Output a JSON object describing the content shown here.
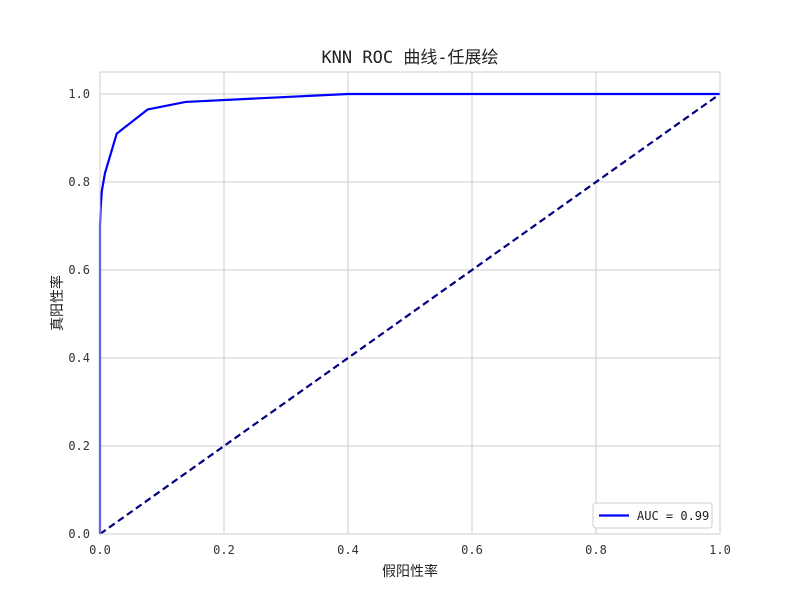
{
  "chart_data": {
    "type": "line",
    "title": "KNN ROC 曲线-任展绘",
    "xlabel": "假阳性率",
    "ylabel": "真阳性率",
    "xlim": [
      0.0,
      1.0
    ],
    "ylim": [
      0.0,
      1.05
    ],
    "xticks": [
      0.0,
      0.2,
      0.4,
      0.6,
      0.8,
      1.0
    ],
    "yticks": [
      0.0,
      0.2,
      0.4,
      0.6,
      0.8,
      1.0
    ],
    "xtick_labels": [
      "0.0",
      "0.2",
      "0.4",
      "0.6",
      "0.8",
      "1.0"
    ],
    "ytick_labels": [
      "0.0",
      "0.2",
      "0.4",
      "0.6",
      "0.8",
      "1.0"
    ],
    "grid": true,
    "legend_position": "lower-right",
    "series": [
      {
        "name": "AUC = 0.99",
        "color": "#0000ff",
        "style": "solid",
        "x": [
          0.0,
          0.0,
          0.001,
          0.003,
          0.008,
          0.027,
          0.077,
          0.138,
          0.4,
          1.0
        ],
        "y": [
          0.0,
          0.7,
          0.74,
          0.78,
          0.82,
          0.91,
          0.965,
          0.982,
          1.0,
          1.0
        ]
      },
      {
        "color": "#000080",
        "style": "dashed",
        "x": [
          0.0,
          1.0
        ],
        "y": [
          0.0,
          1.0
        ]
      }
    ]
  }
}
